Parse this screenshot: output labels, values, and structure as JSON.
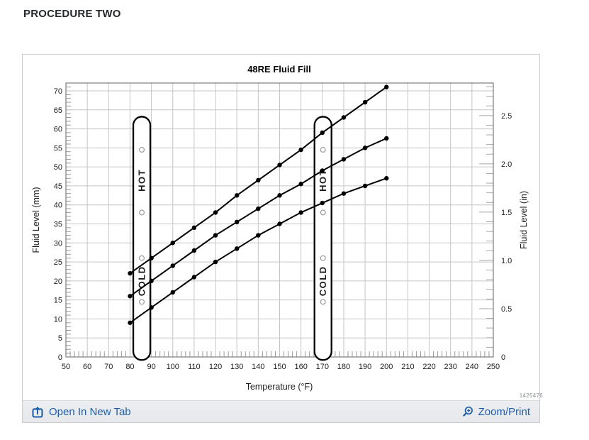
{
  "page": {
    "heading": "PROCEDURE TWO"
  },
  "figure_number": "1425476",
  "footer": {
    "open_label": "Open In New Tab",
    "zoom_label": "Zoom/Print",
    "link_color": "#1e5ea7"
  },
  "chart_data": {
    "type": "line",
    "title": "48RE Fluid Fill",
    "xlabel": "Temperature (°F)",
    "ylabel_left": "Fluid Level (mm)",
    "ylabel_right": "Fluid Level (in)",
    "xlim": [
      50,
      250
    ],
    "x_tick_step": 10,
    "x_minor_step": 2,
    "ylim_mm": [
      0,
      70
    ],
    "y_tick_step_mm": 5,
    "y_minor_step_mm": 1,
    "y_ticks_in": [
      "0",
      "0.5",
      "1.0",
      "1.5",
      "2.0",
      "2.5"
    ],
    "y_tick_step_in": 0.5,
    "y_minor_step_in": 0.1,
    "mm_per_in": 25.4,
    "grid": true,
    "legend": "none",
    "line_color": "#000000",
    "grid_color": "#c6c6c6",
    "temperatures_f": [
      80,
      90,
      100,
      110,
      120,
      130,
      140,
      150,
      160,
      170,
      180,
      190,
      200
    ],
    "series": [
      {
        "name": "upper-line",
        "fluid_mm": [
          22,
          26,
          30,
          34,
          38,
          42.5,
          46.5,
          50.5,
          54.5,
          59,
          63,
          67,
          71
        ]
      },
      {
        "name": "middle-line",
        "fluid_mm": [
          16,
          20,
          24,
          28,
          32,
          35.5,
          39,
          42.5,
          45.5,
          49,
          52,
          55,
          57.5
        ]
      },
      {
        "name": "lower-line",
        "fluid_mm": [
          9,
          13,
          17,
          21,
          25,
          28.5,
          32,
          35,
          38,
          40.5,
          43,
          45,
          47
        ]
      }
    ],
    "dipsticks": [
      {
        "name": "dipstick-left",
        "center_f": 85.5,
        "hot_label": "HOT",
        "cold_label": "COLD",
        "holes_mm": [
          54.5,
          38,
          26,
          14.5
        ],
        "hot_center_mm": 46.5,
        "cold_center_mm": 20,
        "top_mm": 63.2,
        "bottom_mm": -0.8
      },
      {
        "name": "dipstick-right",
        "center_f": 170.3,
        "hot_label": "HOT",
        "cold_label": "COLD",
        "holes_mm": [
          54.5,
          38,
          26,
          14.5
        ],
        "hot_center_mm": 46.5,
        "cold_center_mm": 20,
        "top_mm": 63.2,
        "bottom_mm": -0.8
      }
    ]
  }
}
